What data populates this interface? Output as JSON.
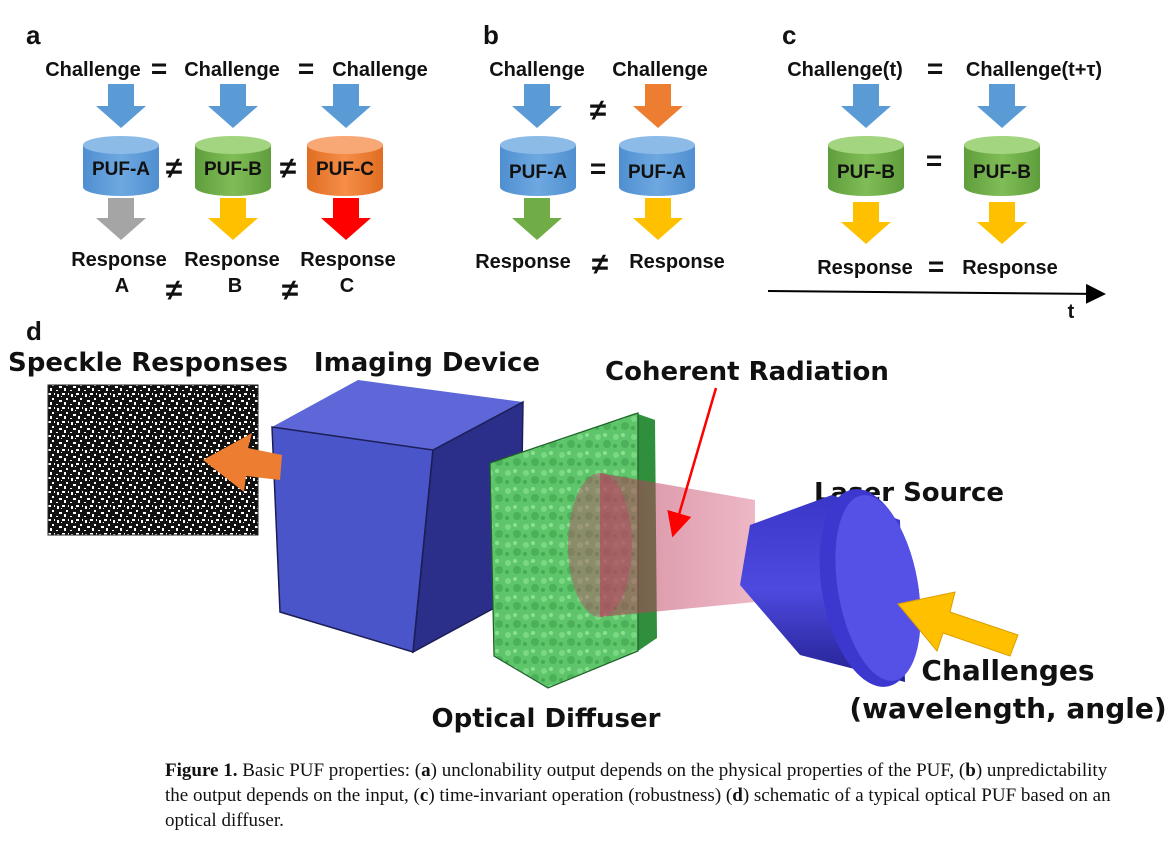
{
  "panel_a": {
    "letter": "a",
    "challenges": [
      "Challenge",
      "Challenge",
      "Challenge"
    ],
    "pufs": [
      "PUF-A",
      "PUF-B",
      "PUF-C"
    ],
    "responses": [
      "Response",
      "Response",
      "Response"
    ],
    "response_ids": [
      "A",
      "B",
      "C"
    ],
    "eq": "=",
    "neq": "≠",
    "colors": {
      "blue": "#5b9bd5",
      "green": "#70ad47",
      "orange": "#ed7d31",
      "gray": "#a5a5a5",
      "yellow": "#ffc000",
      "red": "#ff0000"
    }
  },
  "panel_b": {
    "letter": "b",
    "challenges": [
      "Challenge",
      "Challenge"
    ],
    "pufs": [
      "PUF-A",
      "PUF-A"
    ],
    "responses": [
      "Response",
      "Response"
    ],
    "eq": "=",
    "neq": "≠"
  },
  "panel_c": {
    "letter": "c",
    "challenges": [
      "Challenge(t)",
      "Challenge(t+τ)"
    ],
    "pufs": [
      "PUF-B",
      "PUF-B"
    ],
    "responses": [
      "Response",
      "Response"
    ],
    "eq": "=",
    "axis_label": "t"
  },
  "panel_d": {
    "letter": "d",
    "labels": {
      "speckle": "Speckle Responses",
      "imaging": "Imaging Device",
      "coherent": "Coherent Radiation",
      "laser": "Laser Source",
      "challenges_line1": "Challenges",
      "challenges_line2": "(wavelength, angle)",
      "diffuser": "Optical Diffuser"
    }
  },
  "caption": {
    "figure_label": "Figure 1.",
    "text_1": " Basic PUF properties: (",
    "a": "a",
    "text_2": ") unclonability output depends on the physical properties of the PUF, (",
    "b": "b",
    "text_3": ") unpredictability the output depends on the input, (",
    "c": "c",
    "text_4": ") time-invariant operation (robustness) (",
    "d": "d",
    "text_5": ") schematic of a typical optical PUF based on an optical diffuser."
  }
}
